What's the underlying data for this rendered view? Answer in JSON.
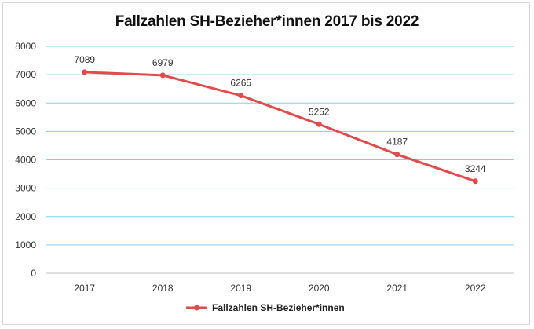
{
  "chart_data": {
    "type": "line",
    "title": "Fallzahlen SH-Bezieher*innen 2017 bis 2022",
    "categories": [
      "2017",
      "2018",
      "2019",
      "2020",
      "2021",
      "2022"
    ],
    "series": [
      {
        "name": "Fallzahlen SH-Bezieher*innen",
        "values": [
          7089,
          6979,
          6265,
          5252,
          4187,
          3244
        ],
        "color": "#e04b4b"
      }
    ],
    "ylim": [
      0,
      8000
    ],
    "yticks": [
      0,
      1000,
      2000,
      3000,
      4000,
      5000,
      6000,
      7000,
      8000
    ],
    "grid": true,
    "grid_color": "#7fd3e6",
    "legend": "bottom",
    "data_labels": true
  }
}
